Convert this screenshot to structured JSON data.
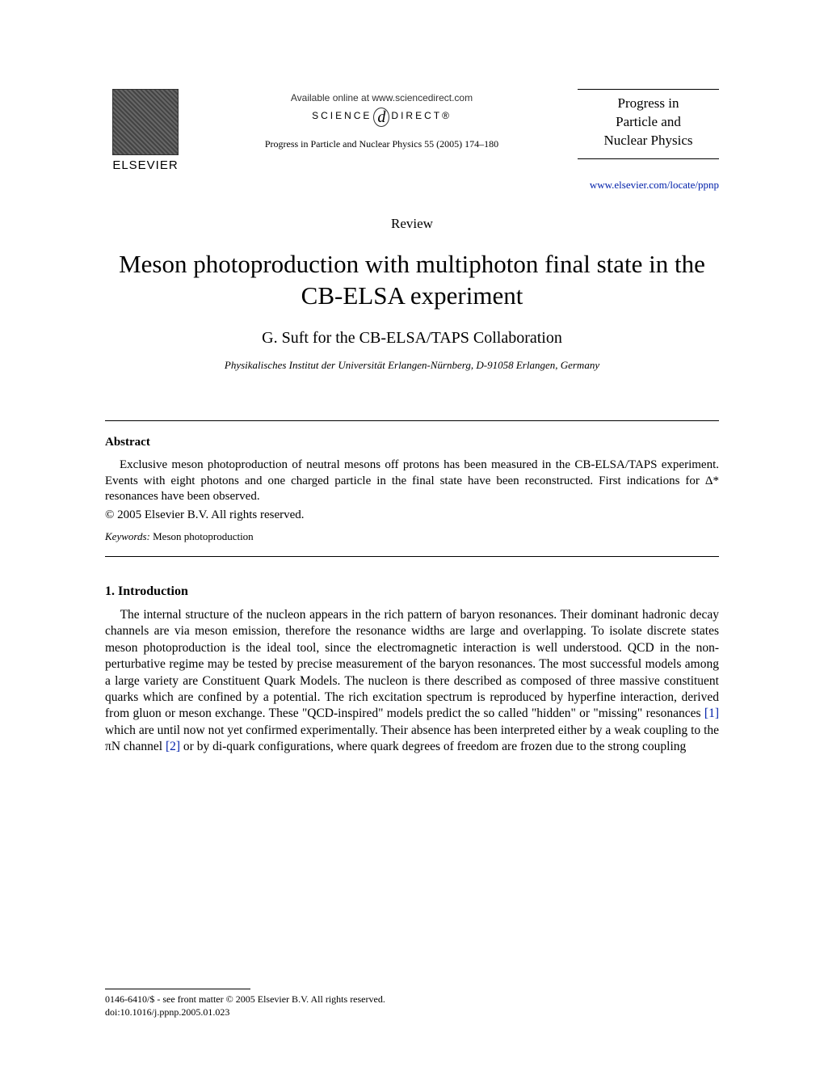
{
  "header": {
    "publisher": "ELSEVIER",
    "available_online": "Available online at www.sciencedirect.com",
    "science_direct_left": "SCIENCE",
    "science_direct_d": "d",
    "science_direct_right": "DIRECT®",
    "journal_ref": "Progress in Particle and Nuclear Physics 55 (2005) 174–180",
    "journal_name_l1": "Progress in",
    "journal_name_l2": "Particle and",
    "journal_name_l3": "Nuclear Physics",
    "journal_url": "www.elsevier.com/locate/ppnp"
  },
  "article": {
    "type_label": "Review",
    "title": "Meson photoproduction with multiphoton final state in the CB-ELSA experiment",
    "authors": "G. Suft  for the CB-ELSA/TAPS Collaboration",
    "affiliation": "Physikalisches Institut der Universität Erlangen-Nürnberg, D-91058 Erlangen, Germany"
  },
  "abstract": {
    "heading": "Abstract",
    "body": "Exclusive meson photoproduction of neutral mesons off protons has been measured in the CB-ELSA/TAPS experiment. Events with eight photons and one charged particle in the final state have been reconstructed. First indications for Δ* resonances have been observed.",
    "copyright": "© 2005 Elsevier B.V. All rights reserved.",
    "keywords_label": "Keywords:",
    "keywords_value": " Meson photoproduction"
  },
  "section1": {
    "heading": "1. Introduction",
    "para1_a": "The internal structure of the nucleon appears in the rich pattern of baryon resonances. Their dominant hadronic decay channels are via meson emission, therefore the resonance widths are large and overlapping. To isolate discrete states meson photoproduction is the ideal tool, since the electromagnetic interaction is well understood. QCD in the non-perturbative regime may be tested by precise measurement of the baryon resonances. The most successful models among a large variety are Constituent Quark Models. The nucleon is there described as composed of three massive constituent quarks which are confined by a potential. The rich excitation spectrum is reproduced by hyperfine interaction, derived from gluon or meson exchange. These \"QCD-inspired\" models predict the so called \"hidden\" or \"missing\" resonances ",
    "cite1": "[1]",
    "para1_b": " which are until now not yet confirmed experimentally. Their absence has been interpreted either by a weak coupling to the πN channel ",
    "cite2": "[2]",
    "para1_c": " or by di-quark configurations, where quark degrees of freedom are frozen due to the strong coupling"
  },
  "footer": {
    "line1": "0146-6410/$ - see front matter © 2005 Elsevier B.V. All rights reserved.",
    "line2": "doi:10.1016/j.ppnp.2005.01.023"
  },
  "colors": {
    "link": "#0020aa",
    "text": "#000000",
    "background": "#ffffff"
  }
}
